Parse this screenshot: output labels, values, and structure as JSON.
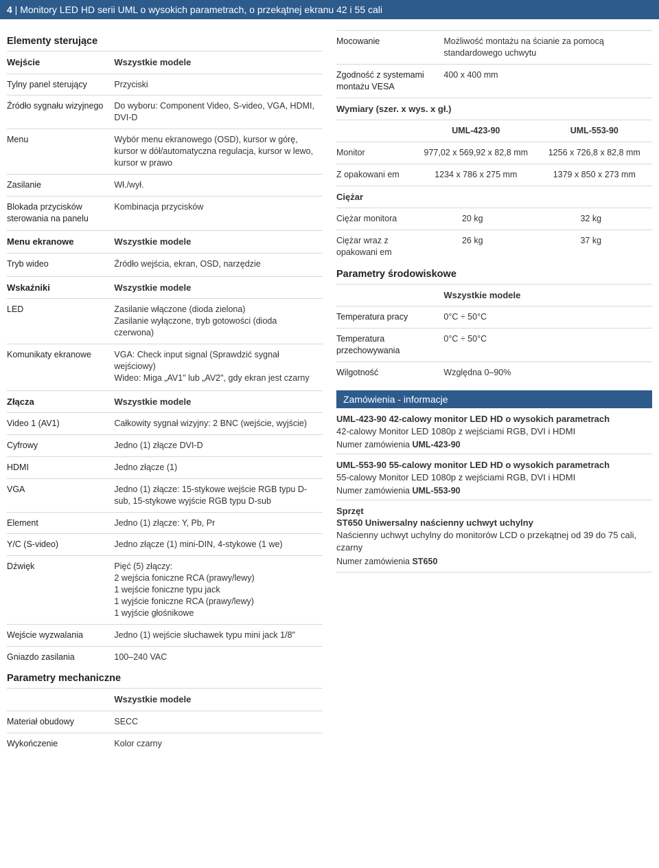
{
  "header": {
    "page_num": "4",
    "sep": " | ",
    "title": "Monitory LED HD serii UML o wysokich parametrach, o przekątnej ekranu 42 i 55 cali"
  },
  "left": {
    "elementy": {
      "title": "Elementy sterujące",
      "rows": [
        {
          "label": "Wejście",
          "value": "Wszystkie modele",
          "bold": true
        },
        {
          "label": "Tylny panel sterujący",
          "value": "Przyciski"
        },
        {
          "label": "Źródło sygnału wizyjnego",
          "value": "Do wyboru: Component Video, S-video, VGA, HDMI, DVI-D"
        },
        {
          "label": "Menu",
          "value": "Wybór menu ekranowego (OSD), kursor w górę, kursor w dół/automatyczna regulacja, kursor w lewo, kursor w prawo"
        },
        {
          "label": "Zasilanie",
          "value": "Wł./wył."
        },
        {
          "label": "Blokada przycisków sterowania na panelu",
          "value": "Kombinacja przycisków"
        }
      ]
    },
    "menu_ekranowe": {
      "rows": [
        {
          "label": "Menu ekranowe",
          "value": "Wszystkie modele",
          "bold": true
        },
        {
          "label": "Tryb wideo",
          "value": "Źródło wejścia, ekran, OSD, narzędzie"
        }
      ]
    },
    "wskazniki": {
      "rows": [
        {
          "label": "Wskaźniki",
          "value": "Wszystkie modele",
          "bold": true
        },
        {
          "label": "LED",
          "value": "Zasilanie włączone (dioda zielona)\nZasilanie wyłączone, tryb gotowości (dioda czerwona)"
        },
        {
          "label": "Komunikaty ekranowe",
          "value": "VGA: Check input signal (Sprawdzić sygnał wejściowy)\nWideo: Miga „AV1\" lub „AV2\", gdy ekran jest czarny"
        }
      ]
    },
    "zlacza": {
      "rows": [
        {
          "label": "Złącza",
          "value": "Wszystkie modele",
          "bold": true
        },
        {
          "label": "Video 1 (AV1)",
          "value": "Całkowity sygnał wizyjny: 2 BNC (wejście, wyjście)"
        },
        {
          "label": "Cyfrowy",
          "value": "Jedno (1) złącze DVI-D"
        },
        {
          "label": "HDMI",
          "value": "Jedno złącze (1)"
        },
        {
          "label": "VGA",
          "value": "Jedno (1) złącze: 15-stykowe wejście RGB typu D-sub, 15-stykowe wyjście RGB typu D-sub"
        },
        {
          "label": "Element",
          "value": "Jedno (1) złącze: Y, Pb, Pr"
        },
        {
          "label": "Y/C (S-video)",
          "value": "Jedno złącze (1) mini-DIN, 4-stykowe (1 we)"
        },
        {
          "label": "Dźwięk",
          "value": "Pięć (5) złączy:\n2 wejścia foniczne RCA (prawy/lewy)\n1 wejście foniczne typu jack\n1 wyjście foniczne RCA (prawy/lewy)\n1 wyjście głośnikowe"
        },
        {
          "label": "Wejście wyzwalania",
          "value": "Jedno (1) wejście słuchawek typu mini jack 1/8\""
        },
        {
          "label": "Gniazdo zasilania",
          "value": "100–240 VAC"
        }
      ]
    },
    "mechaniczne": {
      "title": "Parametry mechaniczne",
      "rows": [
        {
          "label": "",
          "value": "Wszystkie modele",
          "bold": true
        },
        {
          "label": "Materiał obudowy",
          "value": "SECC"
        },
        {
          "label": "Wykończenie",
          "value": "Kolor czarny"
        }
      ]
    }
  },
  "right": {
    "top_rows": [
      {
        "label": "Mocowanie",
        "value": "Możliwość montażu na ścianie za pomocą standardowego uchwytu"
      },
      {
        "label": "Zgodność z systemami montażu VESA",
        "value": "400 x 400 mm"
      }
    ],
    "dim_title": "Wymiary (szer. x wys. x gł.)",
    "dim": {
      "head": [
        "",
        "UML-423-90",
        "UML-553-90"
      ],
      "rows": [
        {
          "label": "Monitor",
          "c1": "977,02 x 569,92 x 82,8 mm",
          "c2": "1256 x 726,8 x 82,8 mm"
        },
        {
          "label": "Z opakowani em",
          "c1": "1234 x 786 x 275 mm",
          "c2": "1379 x 850 x 273 mm"
        }
      ]
    },
    "ciezar_title": "Ciężar",
    "ciezar": {
      "rows": [
        {
          "label": "Ciężar monitora",
          "c1": "20 kg",
          "c2": "32 kg"
        },
        {
          "label": "Ciężar wraz z opakowani em",
          "c1": "26 kg",
          "c2": "37 kg"
        }
      ]
    },
    "srodowisko": {
      "title": "Parametry środowiskowe",
      "rows": [
        {
          "label": "",
          "value": "Wszystkie modele",
          "bold": true
        },
        {
          "label": "Temperatura pracy",
          "value": "0°C ÷ 50°C"
        },
        {
          "label": "Temperatura przechowywania",
          "value": "0°C ÷ 50°C"
        },
        {
          "label": "Wilgotność",
          "value": "Względna 0–90%"
        }
      ]
    },
    "order_bar": "Zamówienia - informacje",
    "orders": [
      {
        "title": "UML-423-90 42-calowy monitor LED HD o wysokich parametrach",
        "desc": "42-calowy Monitor LED 1080p z wejściami RGB, DVI i HDMI",
        "num_label": "Numer zamówienia ",
        "num": "UML-423-90"
      },
      {
        "title": "UML-553-90 55-calowy monitor LED HD o wysokich parametrach",
        "desc": "55-calowy Monitor LED 1080p z wejściami RGB, DVI i HDMI",
        "num_label": "Numer zamówienia ",
        "num": "UML-553-90"
      }
    ],
    "sprzet": {
      "title": "Sprzęt",
      "item_title": "ST650 Uniwersalny naścienny uchwyt uchylny",
      "desc": "Naścienny uchwyt uchylny do monitorów LCD o przekątnej od 39 do 75 cali, czarny",
      "num_label": "Numer zamówienia ",
      "num": "ST650"
    }
  }
}
